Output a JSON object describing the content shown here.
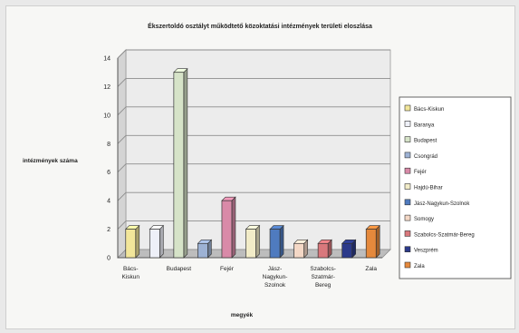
{
  "chart_data": {
    "type": "bar",
    "title": "Ékszertoldó osztályt működtető közoktatási intézmények területi eloszlása",
    "ylabel": "intézmények száma",
    "xlabel": "megyék",
    "ylim": [
      0,
      14
    ],
    "yticks": [
      0,
      2,
      4,
      6,
      8,
      10,
      12,
      14
    ],
    "grid": true,
    "legend": "right",
    "categories": [
      "Bács-Kiskun",
      "Baranya",
      "Budapest",
      "Csongrád",
      "Fejér",
      "Hajdú-Bihar",
      "Jász-Nagykun-Szolnok",
      "Somogy",
      "Szabolcs-Szatmár-Bereg",
      "Veszprém",
      "Zala"
    ],
    "xtick_labels": [
      {
        "index": 0,
        "lines": [
          "Bács-",
          "Kiskun"
        ]
      },
      {
        "index": 2,
        "lines": [
          "Budapest"
        ]
      },
      {
        "index": 4,
        "lines": [
          "Fejér"
        ]
      },
      {
        "index": 6,
        "lines": [
          "Jász-",
          "Nagykun-",
          "Szolnok"
        ]
      },
      {
        "index": 8,
        "lines": [
          "Szabolcs-",
          "Szatmár-",
          "Bereg"
        ]
      },
      {
        "index": 10,
        "lines": [
          "Zala"
        ]
      }
    ],
    "values": [
      2,
      2,
      13,
      1,
      4,
      2,
      2,
      1,
      1,
      1,
      2
    ],
    "colors": [
      "#f2e69a",
      "#eef0f8",
      "#d6e3c8",
      "#9db2d4",
      "#d98aa8",
      "#f2ecc8",
      "#4f7bbf",
      "#f4d8c6",
      "#d9787c",
      "#2c3a8a",
      "#e5893c"
    ],
    "legend_labels": [
      "Bács-Kiskun",
      "Baranya",
      "Budapest",
      "Csongrád",
      "Fejér",
      "Hajdú-Bihar",
      "Jász-Nagykun-Szolnok",
      "Somogy",
      "Szabolcs-Szatmár-Bereg",
      "Veszprém",
      "Zala"
    ]
  }
}
